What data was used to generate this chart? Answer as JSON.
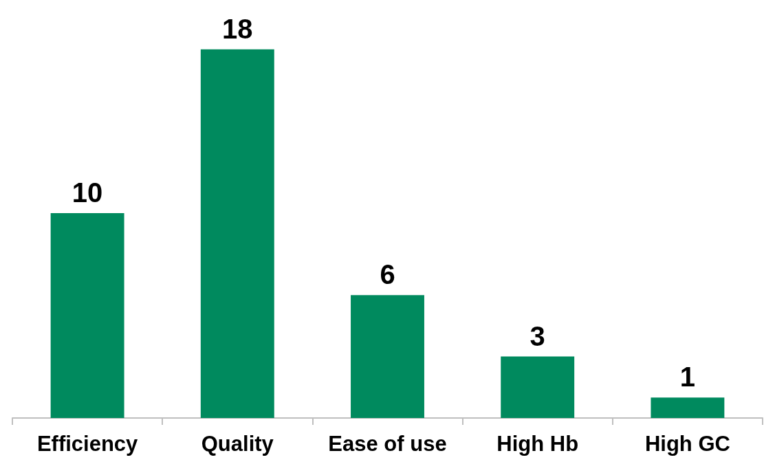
{
  "chart_data": {
    "type": "bar",
    "categories": [
      "Efficiency",
      "Quality",
      "Ease of use",
      "High Hb",
      "High GC"
    ],
    "values": [
      10,
      18,
      6,
      3,
      1
    ],
    "color": "#008a5e",
    "data_labels": true
  }
}
